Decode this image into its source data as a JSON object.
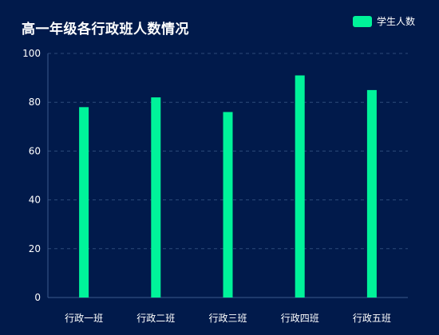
{
  "chart_data": {
    "type": "bar",
    "title": "高一年级各行政班人数情况",
    "categories": [
      "行政一班",
      "行政二班",
      "行政三班",
      "行政四班",
      "行政五班"
    ],
    "series": [
      {
        "name": "学生人数",
        "values": [
          78,
          82,
          76,
          91,
          85
        ]
      }
    ],
    "ylim": [
      0,
      100
    ],
    "yticks": [
      0,
      20,
      40,
      60,
      80,
      100
    ],
    "grid": true,
    "legend": "top-right",
    "colors": {
      "bar": "#00f39a",
      "background": "#011a4b",
      "grid": "#2d4a7a",
      "axis": "#3a5a8c",
      "text": "#ffffff"
    }
  }
}
